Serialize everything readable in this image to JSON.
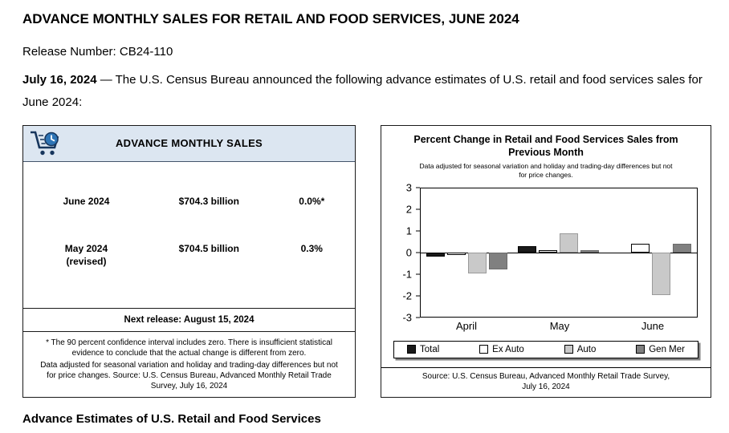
{
  "page": {
    "title": "ADVANCE MONTHLY SALES FOR RETAIL AND FOOD SERVICES, JUNE 2024",
    "release_number": "Release Number: CB24-110",
    "intro_date": "July 16, 2024",
    "intro_text": " — The U.S. Census Bureau announced the following advance estimates of U.S. retail and food services sales for June 2024:",
    "bottom_heading": "Advance Estimates of U.S. Retail and Food Services"
  },
  "sales_card": {
    "header": "ADVANCE MONTHLY SALES",
    "icon": "shopping-cart-clock-icon",
    "rows": [
      {
        "label": "June 2024",
        "sublabel": "",
        "value": "$704.3 billion",
        "change": "0.0%*"
      },
      {
        "label": "May 2024",
        "sublabel": "(revised)",
        "value": "$704.5 billion",
        "change": "0.3%"
      }
    ],
    "next_release": "Next release: August 15, 2024",
    "footnote_line1": "* The 90 percent confidence interval includes zero. There is insufficient statistical evidence to conclude that the actual change is different from zero.",
    "footnote_line2": "Data adjusted for seasonal variation and holiday and trading-day differences but not for price changes. Source: U.S. Census Bureau, Advanced Monthly Retail Trade Survey, July 16, 2024"
  },
  "chart_data": {
    "type": "bar",
    "title": "Percent Change in Retail and Food Services Sales from Previous Month",
    "subtitle": "Data adjusted for seasonal variation and holiday and trading-day differences but not for price changes.",
    "categories": [
      "April",
      "May",
      "June"
    ],
    "series": [
      {
        "name": "Total",
        "color": "#1a1a1a",
        "border": "#000000",
        "values": [
          -0.2,
          0.3,
          0.0
        ]
      },
      {
        "name": "Ex Auto",
        "color": "#ffffff",
        "border": "#000000",
        "values": [
          -0.1,
          0.1,
          0.4
        ]
      },
      {
        "name": "Auto",
        "color": "#c9c9c9",
        "border": "#9a9a9a",
        "values": [
          -1.0,
          0.9,
          -2.0
        ]
      },
      {
        "name": "Gen Mer",
        "color": "#808080",
        "border": "#6b6b6b",
        "values": [
          -0.8,
          0.1,
          0.4
        ]
      }
    ],
    "ylim": [
      -3,
      3
    ],
    "yticks": [
      3,
      2,
      1,
      0,
      -1,
      -2,
      -3
    ],
    "grid": false,
    "legend_position": "bottom",
    "source": "Source: U.S. Census Bureau, Advanced Monthly Retail Trade Survey, July 16, 2024"
  }
}
